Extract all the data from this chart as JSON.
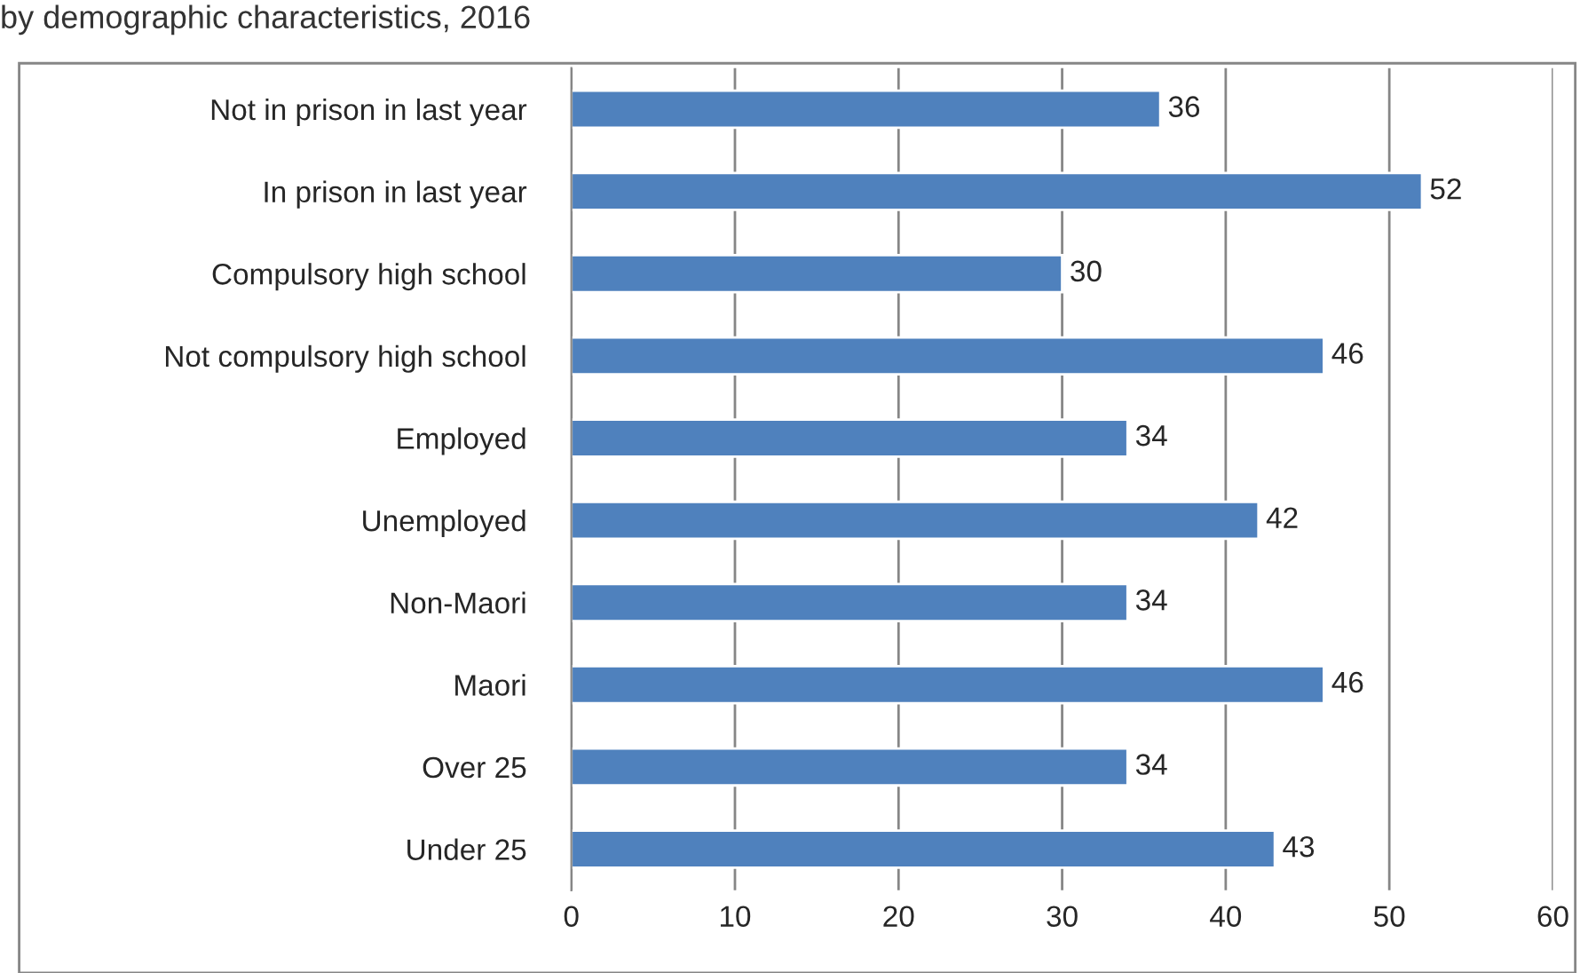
{
  "chart_data": {
    "type": "bar",
    "orientation": "horizontal",
    "title": "by demographic characteristics, 2016",
    "categories": [
      "Not in prison in last year",
      "In prison in last year",
      "Compulsory high school",
      "Not compulsory high school",
      "Employed",
      "Unemployed",
      "Non-Maori",
      "Maori",
      "Over 25",
      "Under 25"
    ],
    "values": [
      36,
      52,
      30,
      46,
      34,
      42,
      34,
      46,
      34,
      43
    ],
    "color": "#4f81bd",
    "xlim": [
      0,
      60
    ],
    "xticks": [
      0,
      10,
      20,
      30,
      40,
      50,
      60
    ],
    "grid": "x",
    "data_labels": true
  }
}
